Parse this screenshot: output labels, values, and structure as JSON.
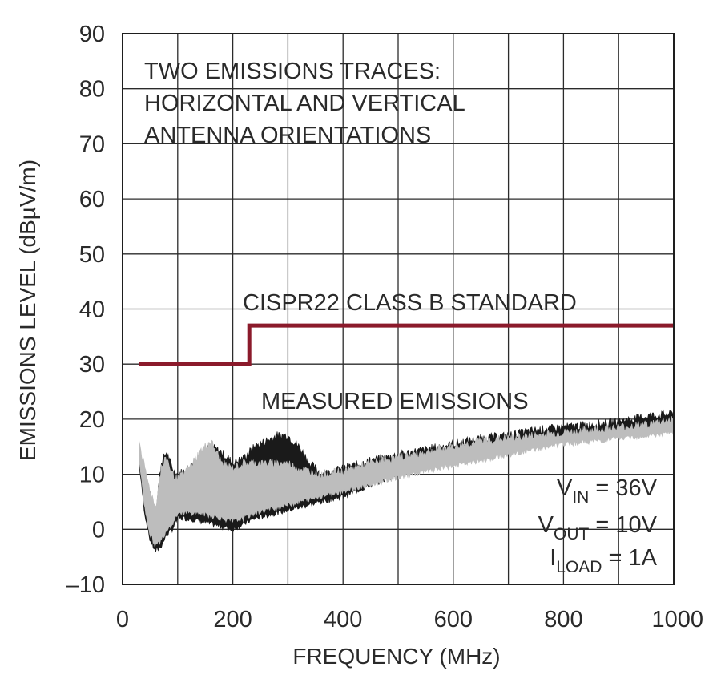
{
  "chart_data": {
    "type": "line",
    "xlabel": "FREQUENCY (MHz)",
    "ylabel": "EMISSIONS LEVEL (dBµV/m)",
    "xlim": [
      0,
      1000
    ],
    "ylim": [
      -10,
      90
    ],
    "x_ticks": [
      0,
      100,
      200,
      300,
      400,
      500,
      600,
      700,
      800,
      900,
      1000
    ],
    "x_tick_labels": [
      "0",
      "",
      "200",
      "",
      "400",
      "",
      "600",
      "",
      "800",
      "",
      "1000"
    ],
    "y_ticks": [
      90,
      80,
      70,
      60,
      50,
      40,
      30,
      20,
      10,
      0,
      -10
    ],
    "y_tick_labels": [
      "90",
      "80",
      "70",
      "60",
      "50",
      "40",
      "30",
      "20",
      "10",
      "0",
      "–10"
    ],
    "grid": true,
    "annotations": {
      "traces_note": [
        "TWO EMISSIONS TRACES:",
        "HORIZONTAL AND VERTICAL",
        "ANTENNA ORIENTATIONS"
      ],
      "limit_label": "CISPR22 CLASS B STANDARD",
      "measured_label": "MEASURED EMISSIONS"
    },
    "conditions": [
      {
        "main": "V",
        "sub": "IN",
        "rest": " = 36V"
      },
      {
        "main": "V",
        "sub": "OUT",
        "rest": " = 10V"
      },
      {
        "main": "I",
        "sub": "LOAD",
        "rest": " = 1A"
      }
    ],
    "limit_line": {
      "x": [
        30,
        230,
        230,
        1000
      ],
      "y": [
        30,
        30,
        37,
        37
      ],
      "color": "#8b1a2b"
    },
    "series": [
      {
        "color": "#1a1a1a",
        "x": [
          30,
          40,
          50,
          60,
          70,
          80,
          90,
          100,
          120,
          140,
          160,
          180,
          200,
          220,
          240,
          260,
          280,
          300,
          320,
          340,
          360,
          400,
          450,
          500,
          550,
          600,
          650,
          700,
          750,
          800,
          850,
          900,
          950,
          1000
        ],
        "y_low": [
          12,
          3,
          -2,
          -4,
          -3,
          -1,
          0,
          2,
          2,
          1.5,
          1,
          0.5,
          0,
          1,
          2,
          2.5,
          3,
          3.5,
          4,
          4.5,
          5,
          6,
          8,
          10,
          11.5,
          13,
          14,
          15,
          16,
          17,
          17.5,
          18,
          18.5,
          19
        ],
        "y_high": [
          15,
          10,
          6,
          3,
          12,
          14,
          11,
          10,
          11,
          13,
          15,
          14,
          12,
          13,
          15,
          16,
          17,
          17,
          15,
          12,
          10,
          11,
          12.5,
          13.5,
          14.5,
          15.5,
          16.5,
          17,
          18,
          18.5,
          19,
          19.5,
          20.5,
          21
        ]
      },
      {
        "color": "#bdbdbd",
        "x": [
          30,
          40,
          50,
          60,
          70,
          80,
          90,
          100,
          120,
          140,
          160,
          180,
          200,
          220,
          240,
          260,
          280,
          300,
          320,
          340,
          360,
          400,
          450,
          500,
          550,
          600,
          650,
          700,
          750,
          800,
          850,
          900,
          950,
          1000
        ],
        "y_low": [
          13,
          4,
          -1,
          -3,
          -2,
          0,
          1,
          3,
          3,
          3,
          2.5,
          2,
          1.5,
          2,
          3,
          3.5,
          4,
          4.5,
          5,
          5.5,
          6,
          7,
          8,
          9.5,
          10.5,
          11.5,
          12.5,
          13.5,
          14.5,
          15.5,
          16,
          16.5,
          17,
          17.5
        ],
        "y_high": [
          16,
          11,
          7,
          4,
          11,
          13,
          10,
          9,
          11,
          14,
          16,
          12,
          11,
          12,
          12,
          12,
          12,
          12,
          11,
          10.5,
          10,
          10.5,
          12,
          13,
          14,
          15,
          16,
          16.5,
          17,
          17.5,
          18,
          18.5,
          19,
          20
        ]
      }
    ]
  }
}
